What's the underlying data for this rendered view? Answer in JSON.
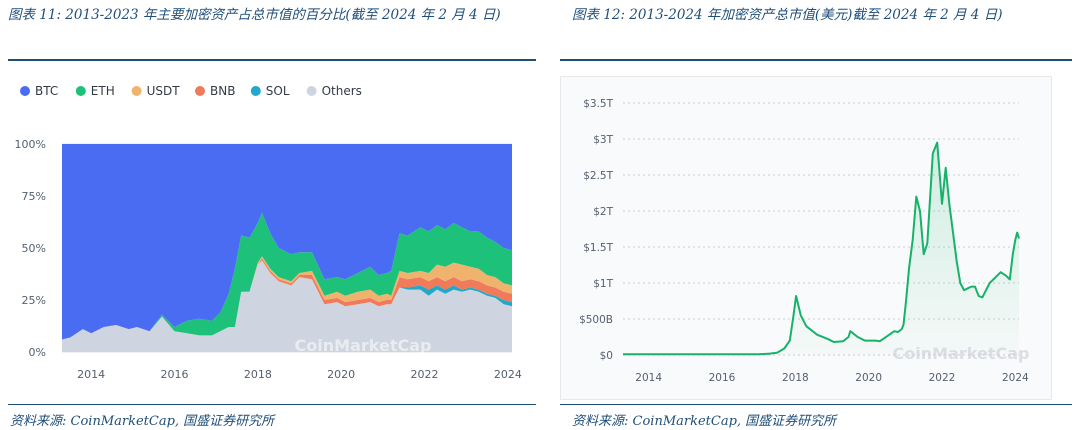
{
  "left_caption": "图表 11: 2013-2023 年主要加密资产占总市值的百分比(截至 2024 年 2 月 4 日)",
  "right_caption": "图表 12: 2013-2024 年加密资产总市值(美元)截至 2024 年 2 月 4 日)",
  "left_source": "资料来源: CoinMarketCap, 国盛证券研究所",
  "right_source": "资料来源: CoinMarketCap, 国盛证券研究所",
  "watermark": "CoinMarketCap",
  "colors": {
    "BTC": "#4a6cf2",
    "ETH": "#1ec17a",
    "USDT": "#f0b36e",
    "BNB": "#f07a5a",
    "SOL": "#23a8c8",
    "Others": "#cfd5e0",
    "line": "#17b26a",
    "axis_text": "#556070",
    "caption": "#1f4e79"
  },
  "chart_data": [
    {
      "type": "area",
      "stacked": true,
      "percent": true,
      "legend_position": "top-left",
      "legend": [
        "BTC",
        "ETH",
        "USDT",
        "BNB",
        "SOL",
        "Others"
      ],
      "y_ticks": [
        "100%",
        "75%",
        "50%",
        "25%",
        "0%"
      ],
      "x_ticks": [
        "2014",
        "2016",
        "2018",
        "2020",
        "2022",
        "2024"
      ],
      "xlim": [
        2013.3,
        2024.1
      ],
      "ylim": [
        0,
        100
      ],
      "grid": true,
      "x": [
        2013.3,
        2013.5,
        2013.8,
        2014.0,
        2014.3,
        2014.6,
        2014.9,
        2015.1,
        2015.4,
        2015.7,
        2016.0,
        2016.3,
        2016.6,
        2016.9,
        2017.1,
        2017.3,
        2017.45,
        2017.6,
        2017.8,
        2018.0,
        2018.1,
        2018.3,
        2018.5,
        2018.8,
        2019.0,
        2019.3,
        2019.6,
        2019.9,
        2020.1,
        2020.4,
        2020.7,
        2020.9,
        2021.1,
        2021.2,
        2021.4,
        2021.6,
        2021.9,
        2022.1,
        2022.3,
        2022.5,
        2022.7,
        2022.9,
        2023.1,
        2023.3,
        2023.5,
        2023.7,
        2023.9,
        2024.1
      ],
      "series": [
        {
          "name": "BTC",
          "values": [
            94,
            93,
            89,
            91,
            88,
            87,
            89,
            88,
            90,
            82,
            88,
            85,
            84,
            85,
            81,
            72,
            60,
            44,
            45,
            38,
            33,
            43,
            50,
            53,
            52,
            52,
            65,
            64,
            65,
            62,
            59,
            63,
            62,
            61,
            43,
            44,
            40,
            42,
            39,
            41,
            38,
            40,
            42,
            42,
            45,
            47,
            50,
            51
          ]
        },
        {
          "name": "ETH",
          "values": [
            0,
            0,
            0,
            0,
            0,
            0,
            0,
            0,
            0,
            1,
            2,
            6,
            8,
            7,
            9,
            16,
            28,
            27,
            26,
            19,
            21,
            17,
            14,
            13,
            10,
            9,
            8,
            7,
            8,
            9,
            11,
            10,
            10,
            12,
            18,
            18,
            21,
            20,
            19,
            18,
            19,
            18,
            17,
            18,
            18,
            17,
            17,
            17
          ]
        },
        {
          "name": "USDT",
          "values": [
            0,
            0,
            0,
            0,
            0,
            0,
            0,
            0,
            0,
            0,
            0,
            0,
            0,
            0,
            0,
            0,
            0,
            0,
            0,
            1,
            1,
            1,
            1,
            1,
            1,
            2,
            2,
            3,
            3,
            4,
            4,
            3,
            3,
            2,
            3,
            3,
            3,
            4,
            6,
            7,
            7,
            8,
            6,
            6,
            5,
            5,
            4,
            4
          ]
        },
        {
          "name": "BNB",
          "values": [
            0,
            0,
            0,
            0,
            0,
            0,
            0,
            0,
            0,
            0,
            0,
            0,
            0,
            0,
            0,
            0,
            0,
            0,
            0,
            0,
            1,
            1,
            1,
            1,
            1,
            2,
            2,
            2,
            2,
            2,
            2,
            2,
            2,
            2,
            5,
            4,
            4,
            4,
            4,
            4,
            4,
            4,
            4,
            4,
            4,
            4,
            4,
            4
          ]
        },
        {
          "name": "SOL",
          "values": [
            0,
            0,
            0,
            0,
            0,
            0,
            0,
            0,
            0,
            0,
            0,
            0,
            0,
            0,
            0,
            0,
            0,
            0,
            0,
            0,
            0,
            0,
            0,
            0,
            0,
            0,
            0,
            0,
            0,
            0,
            0,
            0,
            0,
            0,
            0,
            1,
            2,
            3,
            2,
            2,
            2,
            1,
            1,
            1,
            1,
            1,
            2,
            2
          ]
        },
        {
          "name": "Others",
          "values": [
            6,
            7,
            11,
            9,
            12,
            13,
            11,
            12,
            10,
            17,
            10,
            9,
            8,
            8,
            10,
            12,
            12,
            29,
            29,
            42,
            44,
            38,
            34,
            32,
            36,
            35,
            23,
            24,
            22,
            23,
            24,
            22,
            23,
            23,
            31,
            30,
            30,
            27,
            30,
            28,
            30,
            29,
            30,
            29,
            27,
            26,
            23,
            22
          ]
        }
      ]
    },
    {
      "type": "line",
      "series": [
        {
          "name": "",
          "values": [
            0.01,
            0.01,
            0.01,
            0.01,
            0.01,
            0.02,
            0.03,
            0.09,
            0.2,
            0.55,
            0.82,
            0.55,
            0.4,
            0.28,
            0.22,
            0.18,
            0.19,
            0.25,
            0.33,
            0.25,
            0.2,
            0.2,
            0.19,
            0.26,
            0.33,
            0.32,
            0.36,
            0.42,
            0.76,
            1.2,
            1.6,
            2.2,
            2.0,
            1.4,
            1.55,
            2.8,
            2.95,
            2.1,
            2.6,
            2.1,
            1.3,
            1.0,
            0.9,
            0.95,
            0.95,
            0.82,
            0.8,
            1.0,
            1.1,
            1.15,
            1.1,
            1.05,
            1.4,
            1.6,
            1.7,
            1.62
          ]
        }
      ],
      "x": [
        2013.3,
        2014.0,
        2015.0,
        2016.0,
        2017.0,
        2017.3,
        2017.5,
        2017.7,
        2017.85,
        2017.95,
        2018.02,
        2018.15,
        2018.3,
        2018.6,
        2018.9,
        2019.05,
        2019.3,
        2019.45,
        2019.5,
        2019.7,
        2019.9,
        2020.2,
        2020.3,
        2020.5,
        2020.7,
        2020.8,
        2020.9,
        2020.95,
        2021.02,
        2021.1,
        2021.2,
        2021.3,
        2021.4,
        2021.5,
        2021.6,
        2021.75,
        2021.87,
        2022.0,
        2022.1,
        2022.2,
        2022.4,
        2022.5,
        2022.6,
        2022.8,
        2022.9,
        2023.0,
        2023.1,
        2023.3,
        2023.5,
        2023.6,
        2023.75,
        2023.85,
        2023.93,
        2024.0,
        2024.05,
        2024.1
      ],
      "y_ticks": [
        "$3.5T",
        "$3T",
        "$2.5T",
        "$2T",
        "$1.5T",
        "$1T",
        "$500B",
        "$0"
      ],
      "x_ticks": [
        "2014",
        "2016",
        "2018",
        "2020",
        "2022",
        "2024"
      ],
      "xlim": [
        2013.3,
        2024.1
      ],
      "ylim": [
        0,
        3.5
      ],
      "y_unit": "trillion USD",
      "grid": true
    }
  ]
}
